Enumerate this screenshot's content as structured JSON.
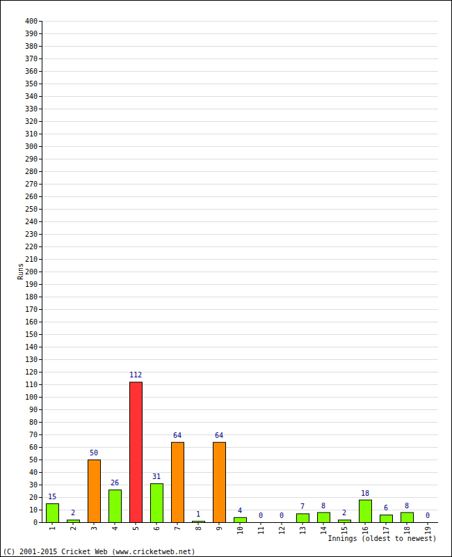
{
  "chart_data": {
    "type": "bar",
    "x_label": "Innings (oldest to newest)",
    "y_label": "Runs",
    "annotations": [
      "(C) 2001-2015 Cricket Web (www.cricketweb.net)"
    ],
    "categories": [
      "1",
      "2",
      "3",
      "4",
      "5",
      "6",
      "7",
      "8",
      "9",
      "10",
      "11",
      "12",
      "13",
      "14",
      "15",
      "16",
      "17",
      "18",
      "19"
    ],
    "values": [
      15,
      2,
      50,
      26,
      112,
      31,
      64,
      1,
      64,
      4,
      0,
      0,
      7,
      8,
      2,
      18,
      6,
      8,
      0
    ],
    "colors": [
      "#80ff00",
      "#80ff00",
      "#ff8c00",
      "#80ff00",
      "#ff3333",
      "#80ff00",
      "#ff8c00",
      "#80ff00",
      "#ff8c00",
      "#80ff00",
      "#80ff00",
      "#80ff00",
      "#80ff00",
      "#80ff00",
      "#80ff00",
      "#80ff00",
      "#80ff00",
      "#80ff00",
      "#80ff00"
    ],
    "ylim": [
      0,
      400
    ],
    "yticks": [
      0,
      10,
      20,
      30,
      40,
      50,
      60,
      70,
      80,
      90,
      100,
      110,
      120,
      130,
      140,
      150,
      160,
      170,
      180,
      190,
      200,
      210,
      220,
      230,
      240,
      250,
      260,
      270,
      280,
      290,
      300,
      310,
      320,
      330,
      340,
      350,
      360,
      370,
      380,
      390,
      400
    ],
    "grid": true,
    "data_labels": true
  }
}
